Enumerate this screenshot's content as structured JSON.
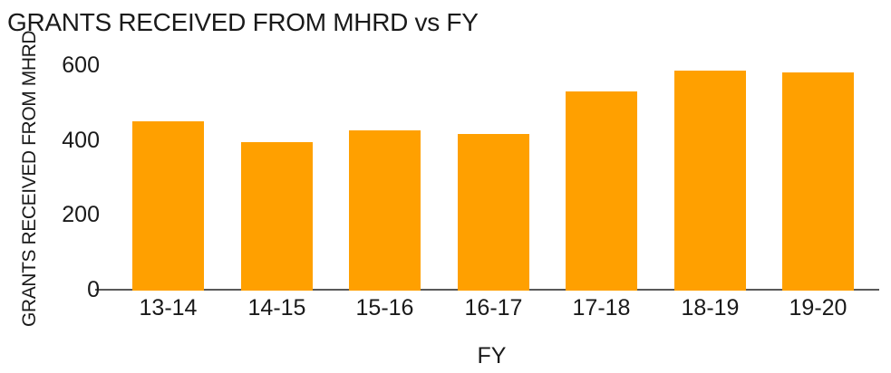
{
  "chart_data": {
    "type": "bar",
    "title": "GRANTS RECEIVED FROM MHRD vs FY",
    "xlabel": "FY",
    "ylabel": "GRANTS RECEIVED FROM MHRD",
    "categories": [
      "13-14",
      "14-15",
      "15-16",
      "16-17",
      "17-18",
      "18-19",
      "19-20"
    ],
    "values": [
      450,
      395,
      425,
      415,
      530,
      585,
      580
    ],
    "yticks": [
      0,
      200,
      400,
      600
    ],
    "ylim": [
      0,
      600
    ],
    "grid": false,
    "legend": false,
    "colors": {
      "bar": "#FFA000",
      "axis_line": "#595959",
      "text": "#1A1A1A",
      "background": "#FFFFFF"
    }
  }
}
